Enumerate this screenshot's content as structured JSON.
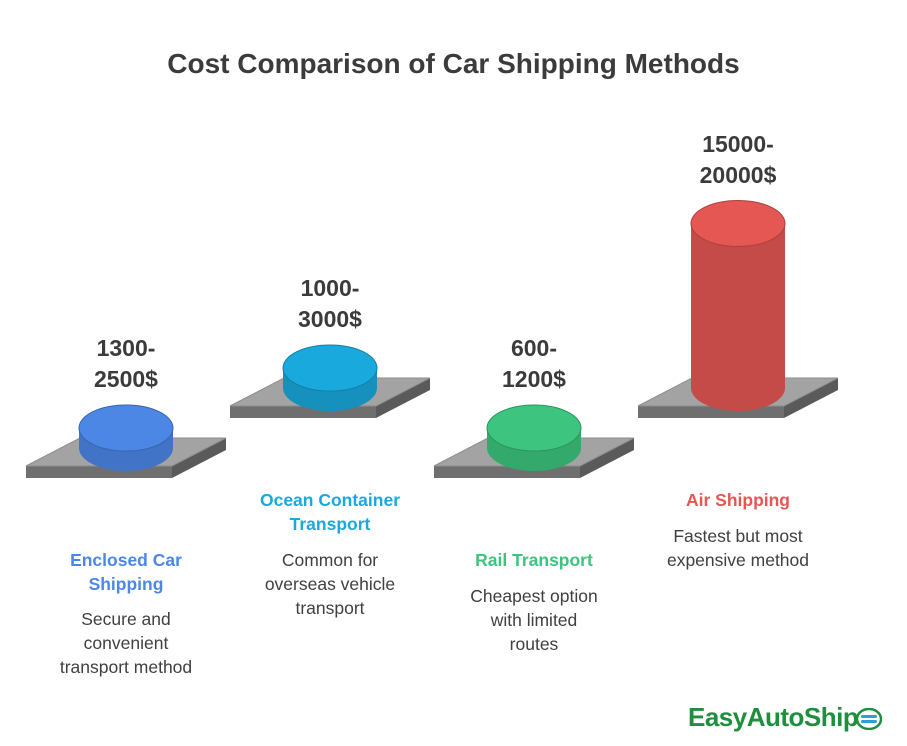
{
  "title": "Cost Comparison of Car Shipping Methods",
  "chart_data": {
    "type": "bar",
    "categories": [
      "Enclosed Car Shipping",
      "Ocean Container Transport",
      "Rail Transport",
      "Air Shipping"
    ],
    "values_min": [
      1300,
      1000,
      600,
      15000
    ],
    "values_max": [
      2500,
      3000,
      1200,
      20000
    ],
    "unit": "$",
    "items": [
      {
        "name_line1": "Enclosed Car",
        "name_line2": "Shipping",
        "range_line1": "1300-",
        "range_line2": "2500$",
        "desc_lines": [
          "Secure and",
          "convenient",
          "transport method"
        ],
        "color": "#4c87e6"
      },
      {
        "name_line1": "Ocean Container",
        "name_line2": "Transport",
        "range_line1": "1000-",
        "range_line2": "3000$",
        "desc_lines": [
          "Common for",
          "overseas vehicle",
          "transport"
        ],
        "color": "#1aa9dc"
      },
      {
        "name_line1": "Rail Transport",
        "name_line2": "",
        "range_line1": "600-",
        "range_line2": "1200$",
        "desc_lines": [
          "Cheapest option",
          "with limited",
          "routes"
        ],
        "color": "#3dc47e"
      },
      {
        "name_line1": "Air Shipping",
        "name_line2": "",
        "range_line1": "15000-",
        "range_line2": "20000$",
        "desc_lines": [
          "Fastest but most",
          "expensive method"
        ],
        "color": "#e45752"
      }
    ]
  },
  "logo": {
    "text": "EasyAutoShip",
    "icon": "car-badge-icon"
  }
}
